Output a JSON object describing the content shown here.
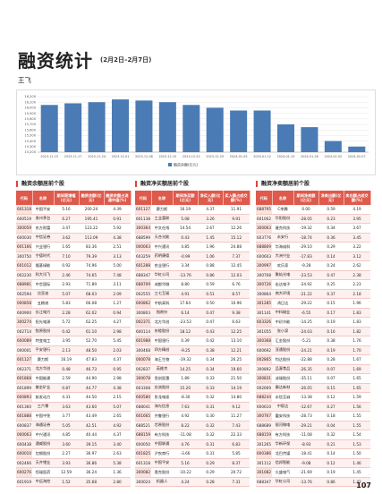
{
  "header": {
    "title": "融资统计",
    "subtitle": "(2月2日–2月7日)",
    "author": "王飞"
  },
  "chart_data": {
    "type": "bar",
    "categories": [
      "2023-11-15",
      "2023-11-17",
      "2023-11-24",
      "2023-12-01",
      "2023-12-08",
      "2023-12-15",
      "2023-12-22",
      "2023-12-29",
      "2024-01-05",
      "2024-01-12",
      "2024-01-19",
      "2024-01-26",
      "2024-02-02",
      "2024-02-07"
    ],
    "series": [
      {
        "name": "融资余额(亿元)",
        "color": "#4a7bb5",
        "values": [
          16050,
          16080,
          16100,
          16150,
          16130,
          16100,
          16050,
          16000,
          15950,
          15950,
          15700,
          15650,
          15400,
          15300
        ]
      }
    ],
    "ylim": [
      15200,
      16200
    ],
    "yticks": [
      {
        "value": 15200,
        "label": "15,200"
      },
      {
        "value": 15300,
        "label": "15,300"
      },
      {
        "value": 15400,
        "label": "15,400"
      },
      {
        "value": 15500,
        "label": "15,500"
      },
      {
        "value": 15600,
        "label": "15,600"
      },
      {
        "value": 15700,
        "label": "15,700"
      },
      {
        "value": 15800,
        "label": "15,800"
      },
      {
        "value": 15900,
        "label": "15,900"
      },
      {
        "value": 16000,
        "label": "16,000"
      },
      {
        "value": 16100,
        "label": "16,100"
      },
      {
        "value": 16200,
        "label": "16,200"
      }
    ],
    "grid": true
  },
  "tables": [
    {
      "title": "融资余额居前个股",
      "columns": [
        "代码",
        "名称",
        "期间周增幅(亿元)",
        "融资余额(亿元)",
        "融资余额占流通市值(%)"
      ],
      "rows": [
        [
          "601318",
          "中国平安",
          "5.16",
          "200.24",
          "4.39"
        ],
        [
          "600519",
          "贵州茅台",
          "6.27",
          "195.41",
          "0.91"
        ],
        [
          "300059",
          "东方财富",
          "3.47",
          "123.22",
          "5.92"
        ],
        [
          "600030",
          "中信证券",
          "3.62",
          "113.09",
          "4.38"
        ],
        [
          "601166",
          "兴业银行",
          "1.65",
          "83.36",
          "2.51"
        ],
        [
          "300750",
          "宁德时代",
          "7.10",
          "79.39",
          "3.13"
        ],
        [
          "601012",
          "隆基绿能",
          "0.92",
          "74.96",
          "5.00"
        ],
        [
          "002230",
          "科大讯飞",
          "2.46",
          "74.65",
          "7.48"
        ],
        [
          "688981",
          "中芯国际",
          "2.93",
          "71.89",
          "3.11"
        ],
        [
          "002594",
          "比亚迪",
          "5.07",
          "68.03",
          "2.09"
        ],
        [
          "000858",
          "五粮液",
          "5.83",
          "66.08",
          "1.27"
        ],
        [
          "600900",
          "长江电力",
          "2.28",
          "62.02",
          "0.94"
        ],
        [
          "300274",
          "阳光电源",
          "5.72",
          "62.25",
          "4.27"
        ],
        [
          "002714",
          "牧原股份",
          "0.42",
          "61.10",
          "2.98"
        ],
        [
          "600089",
          "特变电工",
          "3.95",
          "52.70",
          "5.45"
        ],
        [
          "000001",
          "平安银行",
          "2.13",
          "48.50",
          "2.03"
        ],
        [
          "601127",
          "赛力斯",
          "16.19",
          "47.83",
          "4.37"
        ],
        [
          "002371",
          "北方华创",
          "0.48",
          "46.73",
          "0.95"
        ],
        [
          "601868",
          "中国能建",
          "2.59",
          "44.90",
          "2.98"
        ],
        [
          "601899",
          "紫金矿业",
          "0.87",
          "44.77",
          "4.38"
        ],
        [
          "600893",
          "航发动力",
          "4.31",
          "44.50",
          "2.15"
        ],
        [
          "601360",
          "三六零",
          "3.63",
          "43.60",
          "5.07"
        ],
        [
          "601888",
          "中国中免",
          "3.77",
          "43.49",
          "2.65"
        ],
        [
          "600837",
          "海通证券",
          "5.05",
          "42.51",
          "4.92"
        ],
        [
          "000063",
          "中兴通讯",
          "4.85",
          "40.44",
          "4.37"
        ],
        [
          "600438",
          "通威股份",
          "3.60",
          "39.15",
          "3.40"
        ],
        [
          "600010",
          "包钢股份",
          "2.27",
          "36.97",
          "2.63"
        ],
        [
          "002466",
          "天齐锂业",
          "3.93",
          "36.86",
          "5.38"
        ],
        [
          "600276",
          "恒瑞医药",
          "12.59",
          "36.24",
          "1.36"
        ],
        [
          "601919",
          "中远海控",
          "1.52",
          "35.68",
          "2.80"
        ]
      ]
    },
    {
      "title": "融资净买额居前个股",
      "columns": [
        "代码",
        "名称",
        "期间净买额(亿元)",
        "净买入额(亿元)",
        "买入额占成交额(%)"
      ],
      "rows": [
        [
          "601127",
          "赛力斯",
          "16.19",
          "4.37",
          "11.91"
        ],
        [
          "601138",
          "工业富联",
          "5.08",
          "3.26",
          "9.91"
        ],
        [
          "300364",
          "中文在线",
          "14.54",
          "2.67",
          "12.26"
        ],
        [
          "688599",
          "天合光能",
          "0.43",
          "1.45",
          "15.12"
        ],
        [
          "000063",
          "中兴通讯",
          "4.85",
          "1.96",
          "24.88"
        ],
        [
          "603259",
          "药明康德",
          "-0.99",
          "1.06",
          "7.37"
        ],
        [
          "601288",
          "农业银行",
          "3.34",
          "0.88",
          "12.45"
        ],
        [
          "688347",
          "华虹公司",
          "-13.76",
          "0.86",
          "12.03"
        ],
        [
          "688709",
          "成都华微",
          "8.80",
          "0.59",
          "6.76"
        ],
        [
          "002555",
          "三七互娱",
          "4.91",
          "0.51",
          "8.57"
        ],
        [
          "600862",
          "中航高科",
          "17.64",
          "0.50",
          "10.96"
        ],
        [
          "300803",
          "指南针",
          "6.14",
          "0.47",
          "9.38"
        ],
        [
          "002371",
          "北方华创",
          "-23.53",
          "0.47",
          "6.63"
        ],
        [
          "600114",
          "东睦股份",
          "18.12",
          "0.43",
          "12.25"
        ],
        [
          "601988",
          "中国银行",
          "0.39",
          "0.42",
          "13.10"
        ],
        [
          "300468",
          "四方精创",
          "-9.25",
          "0.38",
          "12.21"
        ],
        [
          "000078",
          "海王生物",
          "-19.32",
          "0.34",
          "26.25"
        ],
        [
          "002837",
          "英维克",
          "14.25",
          "0.34",
          "19.60"
        ],
        [
          "300078",
          "思创医惠",
          "1.89",
          "0.33",
          "21.50"
        ],
        [
          "603308",
          "应流股份",
          "15.20",
          "0.33",
          "14.19"
        ],
        [
          "600580",
          "卧龙电驱",
          "-8.30",
          "0.32",
          "14.80"
        ],
        [
          "688041",
          "海光信息",
          "7.63",
          "0.31",
          "9.12"
        ],
        [
          "601665",
          "齐鲁银行",
          "4.92",
          "0.30",
          "11.27"
        ],
        [
          "688521",
          "芯原股份",
          "8.22",
          "0.32",
          "7.43"
        ],
        [
          "688159",
          "有方科技",
          "-11.08",
          "0.32",
          "22.33"
        ],
        [
          "600050",
          "中国联通",
          "4.76",
          "0.31",
          "6.83"
        ],
        [
          "601825",
          "沪农商行",
          "-3.66",
          "0.31",
          "5.85"
        ],
        [
          "601318",
          "中国平安",
          "5.16",
          "0.29",
          "8.37"
        ],
        [
          "300082",
          "奥克股份",
          "-10.22",
          "0.29",
          "20.72"
        ],
        [
          "300024",
          "机器人",
          "4.24",
          "0.28",
          "7.31"
        ]
      ]
    },
    {
      "title": "融资净卖额居前个股",
      "columns": [
        "代码",
        "名称",
        "期间净卖额(亿元)",
        "净卖出额(亿元)",
        "卖出额占成交额(%)"
      ],
      "rows": [
        [
          "688795",
          "C李腾",
          "0.00",
          "0.59",
          "4.19"
        ],
        [
          "601002",
          "华阳股份",
          "-28.05",
          "0.23",
          "3.95"
        ],
        [
          "300063",
          "雅克科技",
          "-19.32",
          "0.34",
          "3.67"
        ],
        [
          "603776",
          "永安行",
          "-18.74",
          "0.36",
          "3.45"
        ],
        [
          "688809",
          "华海诚科",
          "-29.10",
          "0.29",
          "3.22"
        ],
        [
          "600603",
          "大洲兴业",
          "-17.83",
          "0.14",
          "3.12"
        ],
        [
          "300997",
          "欢乐家",
          "-9.28",
          "0.24",
          "2.62"
        ],
        [
          "300708",
          "聚灿光电",
          "-23.53",
          "0.47",
          "2.38"
        ],
        [
          "300726",
          "宏达电子",
          "-24.92",
          "0.25",
          "2.23"
        ],
        [
          "300864",
          "南大环境",
          "-21.22",
          "0.37",
          "2.18"
        ],
        [
          "301285",
          "鸿日达",
          "-29.22",
          "0.15",
          "1.96"
        ],
        [
          "301141",
          "中科磁业",
          "-6.55",
          "0.17",
          "1.83"
        ],
        [
          "603326",
          "中初节能",
          "-14.25",
          "0.19",
          "1.83"
        ],
        [
          "301055",
          "张小泉",
          "-24.03",
          "0.16",
          "1.82"
        ],
        [
          "300368",
          "汇金股份",
          "-5.21",
          "0.38",
          "1.76"
        ],
        [
          "600692",
          "亚通股份",
          "-24.21",
          "0.19",
          "1.70"
        ],
        [
          "002865",
          "钧达股份",
          "-22.88",
          "0.28",
          "1.67"
        ],
        [
          "300892",
          "品渥食品",
          "-26.35",
          "0.07",
          "1.69"
        ],
        [
          "300831",
          "派瑞股份",
          "-35.11",
          "0.07",
          "1.65"
        ],
        [
          "002669",
          "康达新材",
          "-26.05",
          "0.15",
          "1.65"
        ],
        [
          "688244",
          "永信至诚",
          "-13.38",
          "0.12",
          "1.59"
        ],
        [
          "600610",
          "中毅达",
          "-12.67",
          "0.27",
          "1.56"
        ],
        [
          "300767",
          "震安科技",
          "-28.73",
          "0.18",
          "1.55"
        ],
        [
          "688689",
          "银河微电",
          "-29.21",
          "0.04",
          "1.55"
        ],
        [
          "688159",
          "有方科技",
          "-11.08",
          "0.32",
          "1.54"
        ],
        [
          "301265",
          "华新环保",
          "-8.93",
          "0.21",
          "1.53"
        ],
        [
          "600386",
          "北巴传媒",
          "-18.41",
          "0.14",
          "1.50"
        ],
        [
          "301112",
          "信邦智能",
          "-9.08",
          "0.12",
          "1.46"
        ],
        [
          "301082",
          "久盛电气",
          "-21.69",
          "0.19",
          "1.45"
        ],
        [
          "688347",
          "华虹公司",
          "-13.76",
          "0.86",
          "1.42"
        ]
      ]
    }
  ],
  "page_number": "107"
}
